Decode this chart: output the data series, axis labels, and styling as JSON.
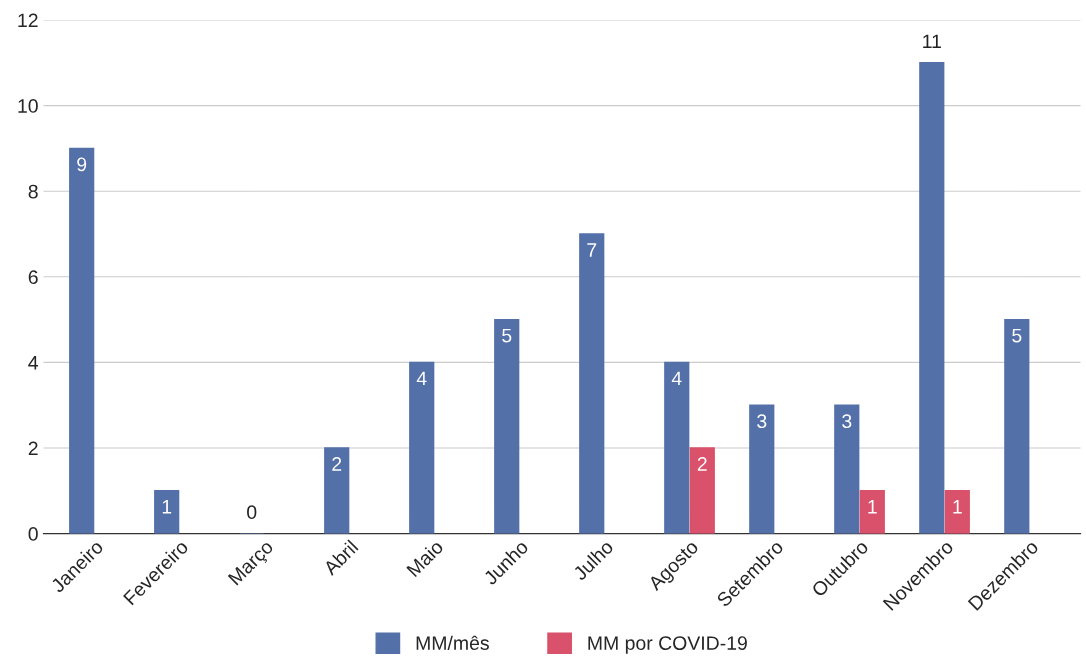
{
  "chart_data": {
    "type": "bar",
    "categories": [
      "Janeiro",
      "Fevereiro",
      "Março",
      "Abril",
      "Maio",
      "Junho",
      "Julho",
      "Agosto",
      "Setembro",
      "Outubro",
      "Novembro",
      "Dezembro"
    ],
    "series": [
      {
        "name": "MM/mês",
        "color": "#5470a8",
        "values": [
          9,
          1,
          0,
          2,
          4,
          5,
          7,
          4,
          3,
          3,
          11,
          5
        ]
      },
      {
        "name": "MM por COVID-19",
        "color": "#d9516a",
        "values": [
          null,
          null,
          null,
          null,
          null,
          null,
          null,
          2,
          null,
          1,
          1,
          null
        ]
      }
    ],
    "ylim": [
      0,
      12
    ],
    "yticks": [
      0,
      2,
      4,
      6,
      8,
      10,
      12
    ],
    "grid": "y",
    "legend": "bottom",
    "data_labels": true
  }
}
